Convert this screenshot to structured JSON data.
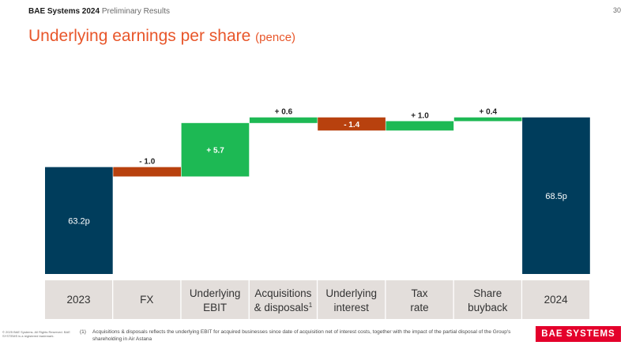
{
  "header": {
    "company_year": "BAE Systems 2024",
    "subtitle": "Preliminary Results"
  },
  "page_number": "30",
  "title": {
    "main": "Underlying earnings per share",
    "unit": "(pence)"
  },
  "colors": {
    "total": "#003d5c",
    "increase": "#1db954",
    "decrease": "#b8410e",
    "category_bg": "#e3dedb",
    "accent": "#e8562a",
    "logo": "#e4002b"
  },
  "chart_data": {
    "type": "bar",
    "subtype": "waterfall",
    "categories": [
      {
        "line1": "2023",
        "line2": "",
        "sup": ""
      },
      {
        "line1": "FX",
        "line2": "",
        "sup": ""
      },
      {
        "line1": "Underlying",
        "line2": "EBIT",
        "sup": ""
      },
      {
        "line1": "Acquisitions",
        "line2": "& disposals",
        "sup": "1"
      },
      {
        "line1": "Underlying",
        "line2": "interest",
        "sup": ""
      },
      {
        "line1": "Tax",
        "line2": "rate",
        "sup": ""
      },
      {
        "line1": "Share",
        "line2": "buyback",
        "sup": ""
      },
      {
        "line1": "2024",
        "line2": "",
        "sup": ""
      }
    ],
    "steps": [
      {
        "kind": "total",
        "value": 63.2,
        "label": "63.2p"
      },
      {
        "kind": "delta",
        "value": -1.0,
        "label": "- 1.0"
      },
      {
        "kind": "delta",
        "value": 5.7,
        "label": "+ 5.7"
      },
      {
        "kind": "delta",
        "value": 0.6,
        "label": "+ 0.6"
      },
      {
        "kind": "delta",
        "value": -1.4,
        "label": "- 1.4"
      },
      {
        "kind": "delta",
        "value": 1.0,
        "label": "+ 1.0"
      },
      {
        "kind": "delta",
        "value": 0.4,
        "label": "+ 0.4"
      },
      {
        "kind": "total",
        "value": 68.5,
        "label": "68.5p"
      }
    ],
    "ylim": [
      51.8,
      71.0
    ]
  },
  "footer": {
    "copyright": "© 2025 BAE Systems. All Rights Reserved. BAE SYSTEMS is a registered trademark.",
    "footnote_number": "(1)",
    "footnote_text": "Acquisitions & disposals reflects the underlying EBIT for acquired businesses since date of acquisition net of interest costs, together with the impact of the partial disposal of the Group's shareholding in Air Astana",
    "logo_text": "BAE SYSTEMS"
  }
}
